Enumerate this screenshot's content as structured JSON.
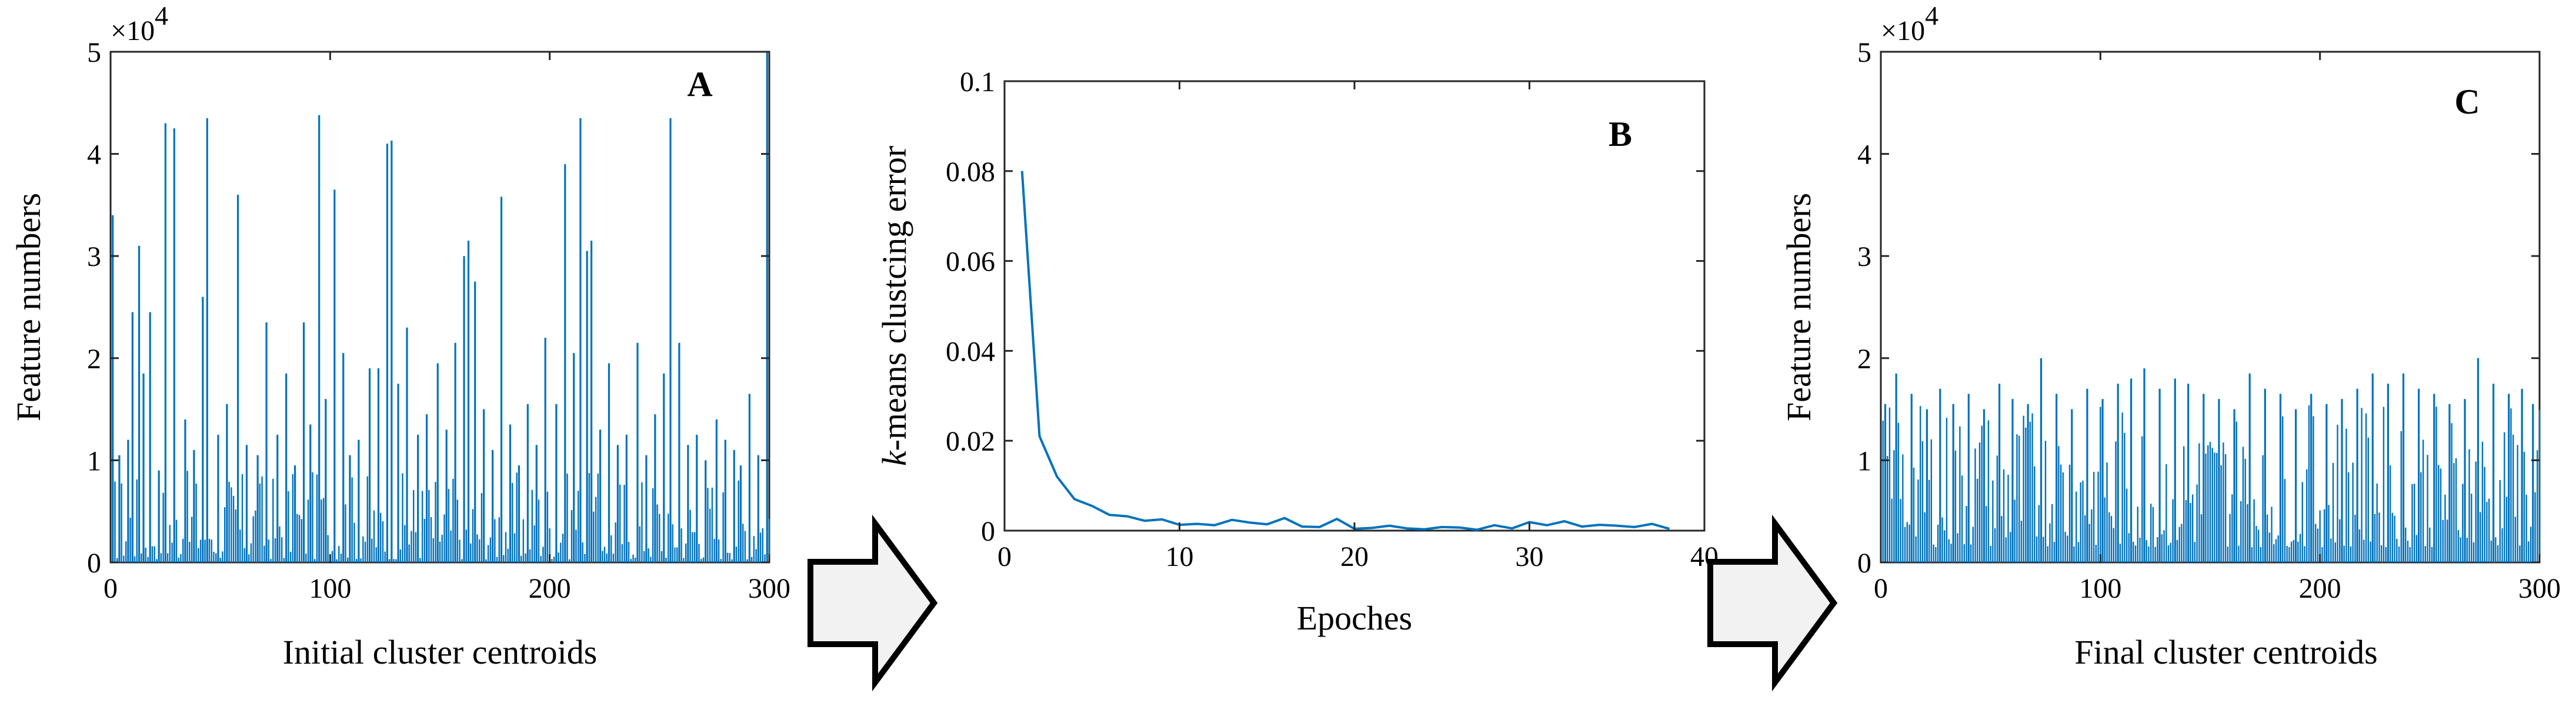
{
  "colors": {
    "series": "#0072BD",
    "frame": "#262626",
    "arrow_fill": "#f2f2f2",
    "arrow_stroke": "#000000"
  },
  "chart_data": [
    {
      "type": "bar",
      "panel_label": "A",
      "xlabel": "Initial cluster centroids",
      "ylabel": "Feature numbers",
      "multiplier": "×10",
      "multiplier_exp": "4",
      "xlim": [
        0,
        300
      ],
      "ylim": [
        0,
        50000
      ],
      "x_ticks": [
        "0",
        "100",
        "200",
        "300"
      ],
      "y_ticks": [
        "0",
        "1",
        "2",
        "3",
        "4",
        "5"
      ],
      "spikes": [
        {
          "x": 1,
          "y": 34000
        },
        {
          "x": 4,
          "y": 10500
        },
        {
          "x": 8,
          "y": 12000
        },
        {
          "x": 10,
          "y": 24500
        },
        {
          "x": 13,
          "y": 31000
        },
        {
          "x": 15,
          "y": 18500
        },
        {
          "x": 18,
          "y": 24500
        },
        {
          "x": 22,
          "y": 9000
        },
        {
          "x": 25,
          "y": 43000
        },
        {
          "x": 29,
          "y": 42500
        },
        {
          "x": 34,
          "y": 14000
        },
        {
          "x": 38,
          "y": 11000
        },
        {
          "x": 42,
          "y": 26000
        },
        {
          "x": 44,
          "y": 43500
        },
        {
          "x": 49,
          "y": 12500
        },
        {
          "x": 53,
          "y": 15500
        },
        {
          "x": 58,
          "y": 36000
        },
        {
          "x": 62,
          "y": 11500
        },
        {
          "x": 67,
          "y": 10500
        },
        {
          "x": 71,
          "y": 23500
        },
        {
          "x": 76,
          "y": 12500
        },
        {
          "x": 80,
          "y": 18500
        },
        {
          "x": 84,
          "y": 9500
        },
        {
          "x": 88,
          "y": 23500
        },
        {
          "x": 91,
          "y": 13500
        },
        {
          "x": 95,
          "y": 43800
        },
        {
          "x": 98,
          "y": 16000
        },
        {
          "x": 102,
          "y": 36500
        },
        {
          "x": 106,
          "y": 20500
        },
        {
          "x": 109,
          "y": 10500
        },
        {
          "x": 113,
          "y": 12000
        },
        {
          "x": 118,
          "y": 19000
        },
        {
          "x": 122,
          "y": 19000
        },
        {
          "x": 126,
          "y": 41000
        },
        {
          "x": 128,
          "y": 41300
        },
        {
          "x": 131,
          "y": 17500
        },
        {
          "x": 135,
          "y": 23000
        },
        {
          "x": 140,
          "y": 12500
        },
        {
          "x": 144,
          "y": 14500
        },
        {
          "x": 149,
          "y": 19500
        },
        {
          "x": 153,
          "y": 13000
        },
        {
          "x": 157,
          "y": 21500
        },
        {
          "x": 161,
          "y": 30000
        },
        {
          "x": 163,
          "y": 31500
        },
        {
          "x": 166,
          "y": 27500
        },
        {
          "x": 170,
          "y": 15000
        },
        {
          "x": 174,
          "y": 11000
        },
        {
          "x": 178,
          "y": 35800
        },
        {
          "x": 182,
          "y": 13500
        },
        {
          "x": 186,
          "y": 9500
        },
        {
          "x": 190,
          "y": 15500
        },
        {
          "x": 194,
          "y": 11500
        },
        {
          "x": 198,
          "y": 22000
        },
        {
          "x": 203,
          "y": 15500
        },
        {
          "x": 207,
          "y": 39000
        },
        {
          "x": 211,
          "y": 20500
        },
        {
          "x": 214,
          "y": 43500
        },
        {
          "x": 217,
          "y": 30500
        },
        {
          "x": 219,
          "y": 31500
        },
        {
          "x": 223,
          "y": 13000
        },
        {
          "x": 227,
          "y": 19500
        },
        {
          "x": 231,
          "y": 11500
        },
        {
          "x": 235,
          "y": 12500
        },
        {
          "x": 240,
          "y": 21500
        },
        {
          "x": 244,
          "y": 10500
        },
        {
          "x": 248,
          "y": 14500
        },
        {
          "x": 252,
          "y": 18500
        },
        {
          "x": 255,
          "y": 43500
        },
        {
          "x": 259,
          "y": 21500
        },
        {
          "x": 263,
          "y": 11500
        },
        {
          "x": 267,
          "y": 12500
        },
        {
          "x": 271,
          "y": 10000
        },
        {
          "x": 276,
          "y": 14000
        },
        {
          "x": 280,
          "y": 12000
        },
        {
          "x": 284,
          "y": 11000
        },
        {
          "x": 287,
          "y": 9500
        },
        {
          "x": 291,
          "y": 16500
        },
        {
          "x": 295,
          "y": 10500
        },
        {
          "x": 299,
          "y": 50000
        }
      ]
    },
    {
      "type": "line",
      "panel_label": "B",
      "xlabel": "Epoches",
      "ylabel_italic": "k",
      "ylabel": "-means clustcing error",
      "xlim": [
        0,
        40
      ],
      "ylim": [
        0,
        0.1
      ],
      "x_ticks": [
        "0",
        "10",
        "20",
        "30",
        "40"
      ],
      "y_ticks": [
        "0",
        "0.02",
        "0.04",
        "0.06",
        "0.08",
        "0.1"
      ],
      "x": [
        1,
        2,
        3,
        4,
        5,
        6,
        7,
        8,
        9,
        10,
        11,
        12,
        13,
        14,
        15,
        16,
        17,
        18,
        19,
        20,
        21,
        22,
        23,
        24,
        25,
        26,
        27,
        28,
        29,
        30,
        31,
        32,
        33,
        34,
        35,
        36,
        37,
        38
      ],
      "y": [
        0.08,
        0.021,
        0.012,
        0.007,
        0.0055,
        0.0035,
        0.0032,
        0.0022,
        0.0025,
        0.0013,
        0.0015,
        0.0012,
        0.0024,
        0.0018,
        0.0014,
        0.0028,
        0.0009,
        0.0008,
        0.0026,
        0.0004,
        0.0006,
        0.0011,
        0.0005,
        0.0003,
        0.0008,
        0.0007,
        0.0002,
        0.0012,
        0.0005,
        0.0019,
        0.0012,
        0.0021,
        0.0009,
        0.0013,
        0.0011,
        0.0008,
        0.0015,
        0.0004
      ]
    },
    {
      "type": "bar",
      "panel_label": "C",
      "xlabel": "Final cluster centroids",
      "ylabel": "Feature numbers",
      "multiplier": "×10",
      "multiplier_exp": "4",
      "xlim": [
        0,
        300
      ],
      "ylim": [
        0,
        50000
      ],
      "x_ticks": [
        "0",
        "100",
        "200",
        "300"
      ],
      "y_ticks": [
        "0",
        "1",
        "2",
        "3",
        "4",
        "5"
      ],
      "spikes": [
        {
          "x": 2,
          "y": 15500
        },
        {
          "x": 7,
          "y": 18500
        },
        {
          "x": 14,
          "y": 16500
        },
        {
          "x": 21,
          "y": 15000
        },
        {
          "x": 27,
          "y": 17000
        },
        {
          "x": 33,
          "y": 15500
        },
        {
          "x": 40,
          "y": 16500
        },
        {
          "x": 47,
          "y": 15000
        },
        {
          "x": 54,
          "y": 17500
        },
        {
          "x": 60,
          "y": 16000
        },
        {
          "x": 67,
          "y": 15500
        },
        {
          "x": 73,
          "y": 20000
        },
        {
          "x": 80,
          "y": 16500
        },
        {
          "x": 87,
          "y": 15000
        },
        {
          "x": 94,
          "y": 17000
        },
        {
          "x": 101,
          "y": 16000
        },
        {
          "x": 108,
          "y": 17500
        },
        {
          "x": 114,
          "y": 18000
        },
        {
          "x": 120,
          "y": 19000
        },
        {
          "x": 127,
          "y": 17000
        },
        {
          "x": 134,
          "y": 18000
        },
        {
          "x": 140,
          "y": 17500
        },
        {
          "x": 147,
          "y": 16500
        },
        {
          "x": 154,
          "y": 16000
        },
        {
          "x": 161,
          "y": 15000
        },
        {
          "x": 168,
          "y": 18500
        },
        {
          "x": 175,
          "y": 17000
        },
        {
          "x": 182,
          "y": 16500
        },
        {
          "x": 189,
          "y": 15000
        },
        {
          "x": 196,
          "y": 16500
        },
        {
          "x": 203,
          "y": 15500
        },
        {
          "x": 210,
          "y": 16000
        },
        {
          "x": 217,
          "y": 17000
        },
        {
          "x": 224,
          "y": 18500
        },
        {
          "x": 231,
          "y": 17500
        },
        {
          "x": 238,
          "y": 18500
        },
        {
          "x": 245,
          "y": 17000
        },
        {
          "x": 252,
          "y": 16500
        },
        {
          "x": 259,
          "y": 15500
        },
        {
          "x": 266,
          "y": 16000
        },
        {
          "x": 272,
          "y": 20000
        },
        {
          "x": 279,
          "y": 17500
        },
        {
          "x": 286,
          "y": 16500
        },
        {
          "x": 292,
          "y": 17000
        },
        {
          "x": 297,
          "y": 15500
        }
      ]
    }
  ]
}
